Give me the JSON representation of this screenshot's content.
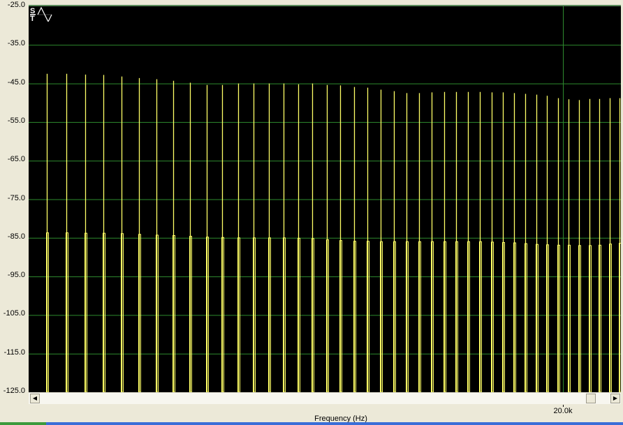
{
  "chart_data": {
    "type": "bar",
    "xlabel": "Frequency (Hz)",
    "ylabel": "",
    "x_scale": "log",
    "xlim": [
      10640,
      21410
    ],
    "ylim": [
      -125,
      -25
    ],
    "grid": true,
    "y_ticks": [
      "-25.0",
      "-35.0",
      "-45.0",
      "-55.0",
      "-65.0",
      "-75.0",
      "-85.0",
      "-95.0",
      "-105.0",
      "-115.0",
      "-125.0"
    ],
    "y_tick_values": [
      -25,
      -35,
      -45,
      -55,
      -65,
      -75,
      -85,
      -95,
      -105,
      -115,
      -125
    ],
    "x_ticks": [
      {
        "value": 20000,
        "label": "20.0k"
      }
    ],
    "x": [
      10875,
      11125,
      11375,
      11625,
      11875,
      12125,
      12375,
      12625,
      12875,
      13125,
      13375,
      13625,
      13875,
      14125,
      14375,
      14625,
      14875,
      15125,
      15375,
      15625,
      15875,
      16125,
      16375,
      16625,
      16875,
      17125,
      17375,
      17625,
      17875,
      18125,
      18375,
      18625,
      18875,
      19125,
      19375,
      19625,
      19875,
      20125,
      20375,
      20625,
      20875,
      21125,
      21375
    ],
    "series": [
      {
        "values": [
          -42.5,
          -42.5,
          -42.7,
          -42.8,
          -43.2,
          -43.6,
          -43.9,
          -44.3,
          -44.8,
          -45.4,
          -45.4,
          -45.0,
          -45.0,
          -45.0,
          -45.0,
          -45.2,
          -45.0,
          -45.4,
          -45.5,
          -45.9,
          -46.1,
          -46.6,
          -47.0,
          -47.5,
          -47.5,
          -47.3,
          -47.2,
          -47.2,
          -47.2,
          -47.2,
          -47.3,
          -47.3,
          -47.5,
          -47.7,
          -47.9,
          -48.2,
          -48.8,
          -49.1,
          -49.3,
          -49.0,
          -49.0,
          -48.8,
          -48.8
        ]
      },
      {
        "values": [
          -83.7,
          -83.7,
          -83.8,
          -83.8,
          -83.9,
          -84.1,
          -84.3,
          -84.4,
          -84.6,
          -84.8,
          -84.9,
          -85.0,
          -85.0,
          -85.0,
          -85.0,
          -85.1,
          -85.2,
          -85.5,
          -85.7,
          -85.9,
          -85.9,
          -86.0,
          -86.0,
          -86.0,
          -86.0,
          -86.0,
          -86.0,
          -86.0,
          -86.0,
          -86.0,
          -86.1,
          -86.2,
          -86.3,
          -86.5,
          -86.7,
          -86.8,
          -86.9,
          -86.9,
          -87.0,
          -87.0,
          -86.9,
          -86.6,
          -86.4
        ]
      }
    ],
    "colors": {
      "background": "#000000",
      "grid": "#2e8b2e",
      "trace": "#ffff66",
      "window": "#ece9d8"
    }
  },
  "icons": {
    "mode_indicator": "stereo-sine-icon"
  }
}
